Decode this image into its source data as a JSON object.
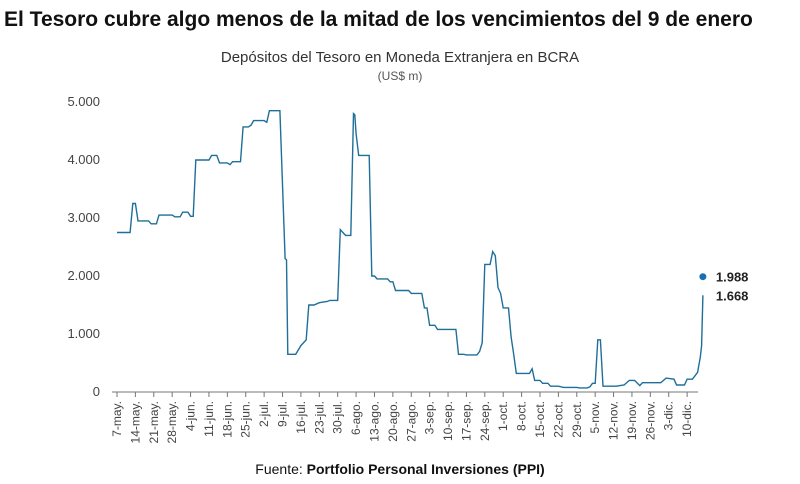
{
  "headline": "El Tesoro cubre algo menos de la mitad de los vencimientos del 9 de enero",
  "source": {
    "label": "Fuente: ",
    "name": "Portfolio Personal Inversiones (PPI)"
  },
  "colors": {
    "line": "#1f6f99",
    "dot": "#1a6fb3",
    "axis": "#777777"
  },
  "chart_data": {
    "type": "line",
    "title": "Depósitos del Tesoro en Moneda Extranjera en BCRA",
    "subtitle": "(US$ m)",
    "xlabel": "",
    "ylabel": "",
    "ylim": [
      0,
      5000
    ],
    "y_ticks": [
      0,
      1000,
      2000,
      3000,
      4000,
      5000
    ],
    "y_tick_labels": [
      "0",
      "1.000",
      "2.000",
      "3.000",
      "4.000",
      "5.000"
    ],
    "x_tick_labels": [
      "7-may.",
      "14-may.",
      "21-may.",
      "28-may.",
      "4-jun.",
      "11-jun.",
      "18-jun.",
      "25-jun.",
      "2-jul.",
      "9-jul.",
      "16-jul.",
      "23-jul.",
      "30-jul.",
      "6-ago.",
      "13-ago.",
      "20-ago.",
      "27-ago.",
      "3-sep.",
      "10-sep.",
      "17-sep.",
      "24-sep.",
      "1-oct.",
      "8-oct.",
      "15-oct.",
      "22-oct.",
      "29-oct.",
      "5-nov.",
      "12-nov.",
      "19-nov.",
      "26-nov.",
      "3-dic.",
      "10-dic."
    ],
    "x_unit": "days since 7-may",
    "x_range": [
      0,
      220
    ],
    "series": [
      {
        "name": "Depósitos del Tesoro en Moneda Extranjera en BCRA",
        "points": [
          [
            0,
            2750
          ],
          [
            5,
            2750
          ],
          [
            6,
            3250
          ],
          [
            7,
            3250
          ],
          [
            8,
            2950
          ],
          [
            12,
            2950
          ],
          [
            13,
            2900
          ],
          [
            15,
            2900
          ],
          [
            16,
            3050
          ],
          [
            21,
            3050
          ],
          [
            22,
            3020
          ],
          [
            24,
            3020
          ],
          [
            25,
            3100
          ],
          [
            27,
            3100
          ],
          [
            28,
            3030
          ],
          [
            29,
            3030
          ],
          [
            30,
            4000
          ],
          [
            35,
            4000
          ],
          [
            36,
            4080
          ],
          [
            38,
            4080
          ],
          [
            39,
            3950
          ],
          [
            42,
            3950
          ],
          [
            43,
            3920
          ],
          [
            44,
            3970
          ],
          [
            47,
            3970
          ],
          [
            48,
            4570
          ],
          [
            50,
            4570
          ],
          [
            51,
            4600
          ],
          [
            52,
            4680
          ],
          [
            56,
            4680
          ],
          [
            57,
            4650
          ],
          [
            58,
            4850
          ],
          [
            62,
            4850
          ],
          [
            64,
            2300
          ],
          [
            64.5,
            2280
          ],
          [
            65,
            650
          ],
          [
            68,
            650
          ],
          [
            70,
            800
          ],
          [
            72,
            900
          ],
          [
            73,
            1500
          ],
          [
            75,
            1500
          ],
          [
            77,
            1540
          ],
          [
            80,
            1560
          ],
          [
            81,
            1580
          ],
          [
            84,
            1580
          ],
          [
            85,
            2800
          ],
          [
            86,
            2750
          ],
          [
            87,
            2700
          ],
          [
            89,
            2700
          ],
          [
            90,
            4800
          ],
          [
            90.5,
            4780
          ],
          [
            91,
            4450
          ],
          [
            92,
            4080
          ],
          [
            96,
            4080
          ],
          [
            97,
            2000
          ],
          [
            98,
            2000
          ],
          [
            99,
            1950
          ],
          [
            103,
            1950
          ],
          [
            104,
            1900
          ],
          [
            105,
            1900
          ],
          [
            106,
            1750
          ],
          [
            111,
            1750
          ],
          [
            112,
            1700
          ],
          [
            116,
            1700
          ],
          [
            117,
            1450
          ],
          [
            118,
            1450
          ],
          [
            119,
            1150
          ],
          [
            121,
            1150
          ],
          [
            122,
            1080
          ],
          [
            129,
            1080
          ],
          [
            130,
            650
          ],
          [
            132,
            650
          ],
          [
            133,
            640
          ],
          [
            137,
            640
          ],
          [
            138,
            700
          ],
          [
            139,
            850
          ],
          [
            140,
            2200
          ],
          [
            142,
            2200
          ],
          [
            143,
            2420
          ],
          [
            144,
            2350
          ],
          [
            145,
            1800
          ],
          [
            146,
            1700
          ],
          [
            147,
            1450
          ],
          [
            149,
            1450
          ],
          [
            150,
            950
          ],
          [
            151,
            650
          ],
          [
            152,
            320
          ],
          [
            157,
            320
          ],
          [
            158,
            400
          ],
          [
            159,
            200
          ],
          [
            161,
            200
          ],
          [
            162,
            150
          ],
          [
            164,
            150
          ],
          [
            165,
            100
          ],
          [
            168,
            100
          ],
          [
            170,
            80
          ],
          [
            175,
            80
          ],
          [
            176,
            70
          ],
          [
            179,
            70
          ],
          [
            180,
            90
          ],
          [
            181,
            150
          ],
          [
            182,
            150
          ],
          [
            183,
            900
          ],
          [
            184,
            900
          ],
          [
            185,
            100
          ],
          [
            190,
            100
          ],
          [
            193,
            120
          ],
          [
            195,
            200
          ],
          [
            197,
            200
          ],
          [
            199,
            110
          ],
          [
            200,
            160
          ],
          [
            207,
            160
          ],
          [
            209,
            240
          ],
          [
            212,
            220
          ],
          [
            213,
            120
          ],
          [
            216,
            120
          ],
          [
            217,
            220
          ],
          [
            219,
            220
          ],
          [
            220,
            280
          ],
          [
            221,
            340
          ],
          [
            222,
            600
          ],
          [
            222.5,
            800
          ],
          [
            223,
            1668
          ]
        ]
      }
    ],
    "annotations": [
      {
        "label": "1.988",
        "x": 223,
        "y": 1988,
        "marker": "dot"
      },
      {
        "label": "1.668",
        "x": 223,
        "y": 1668,
        "marker": "none"
      }
    ]
  }
}
